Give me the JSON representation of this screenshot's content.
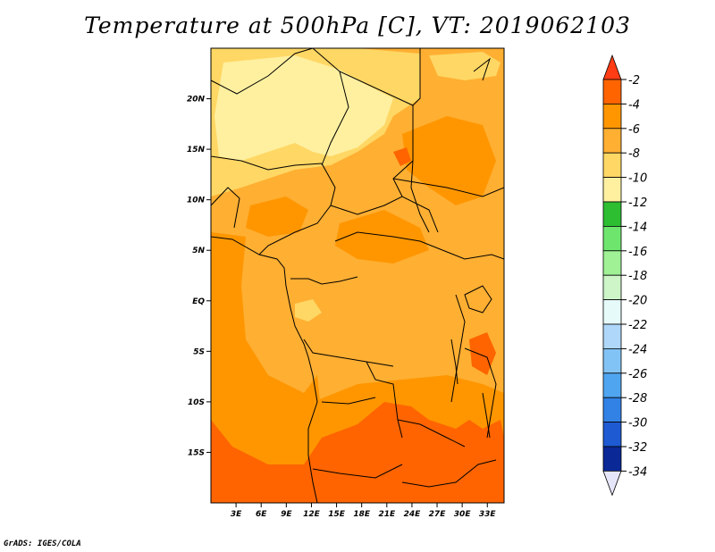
{
  "title": "Temperature at 500hPa [C], VT: 2019062103",
  "credit": "GrADS: IGES/COLA",
  "map": {
    "lon_range": [
      0,
      35
    ],
    "lat_range": [
      -20,
      25
    ],
    "x_ticks": [
      "3E",
      "6E",
      "9E",
      "12E",
      "15E",
      "18E",
      "21E",
      "24E",
      "27E",
      "30E",
      "33E"
    ],
    "x_tick_values": [
      3,
      6,
      9,
      12,
      15,
      18,
      21,
      24,
      27,
      30,
      33
    ],
    "y_ticks": [
      "20N",
      "15N",
      "10N",
      "5N",
      "EQ",
      "5S",
      "10S",
      "15S"
    ],
    "y_tick_values": [
      20,
      15,
      10,
      5,
      0,
      -5,
      -10,
      -15
    ]
  },
  "colorbar": {
    "labels": [
      "-2",
      "-4",
      "-6",
      "-8",
      "-10",
      "-12",
      "-14",
      "-16",
      "-18",
      "-20",
      "-22",
      "-24",
      "-26",
      "-28",
      "-30",
      "-32",
      "-34"
    ],
    "colors": [
      "#ff6400",
      "#ff9600",
      "#ffaf32",
      "#ffd764",
      "#fff0a0",
      "#2dbe32",
      "#6ee66e",
      "#a0f096",
      "#cdf5c8",
      "#e6fafa",
      "#afd7fa",
      "#82c3f5",
      "#50a5f0",
      "#3282e6",
      "#1e5ad2",
      "#0a2896"
    ],
    "top_triangle_color": "#ff3c14",
    "bottom_triangle_color": "#e6e6fa"
  }
}
